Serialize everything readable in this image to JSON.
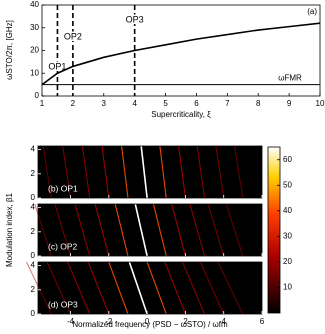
{
  "chart_data": [
    {
      "type": "line",
      "x": [
        1,
        1.5,
        2,
        3,
        4,
        5,
        6,
        7,
        8,
        9,
        10
      ],
      "series": [
        {
          "color": "#000000",
          "values": [
            5,
            10,
            13,
            17,
            20,
            22.5,
            25,
            27,
            29,
            30.5,
            32
          ]
        },
        {
          "name": "ωFMR",
          "color": "#000000",
          "values": [
            5,
            5,
            5,
            5,
            5,
            5,
            5,
            5,
            5,
            5,
            5
          ]
        }
      ],
      "xlim": [
        1,
        10
      ],
      "xticks": [
        1,
        2,
        3,
        4,
        5,
        6,
        7,
        8,
        9,
        10
      ],
      "ylim": [
        0,
        40
      ],
      "yticks": [
        0,
        10,
        20,
        30,
        40
      ],
      "xlabel": "Supercriticality, ξ",
      "ylabel": "ωSTO/2π, [GHz]",
      "panel_label": "(a)",
      "markers": [
        {
          "x": 1.5,
          "label": "OP1"
        },
        {
          "x": 2,
          "label": "OP2"
        },
        {
          "x": 4,
          "label": "OP3"
        }
      ]
    },
    {
      "type": "heatmap",
      "panels": [
        {
          "label": "(b) OP1"
        },
        {
          "label": "(c) OP2"
        },
        {
          "label": "(d) OP3"
        }
      ],
      "xlim": [
        -5.7,
        6
      ],
      "xticks": [
        -4,
        -2,
        0,
        2,
        4,
        6
      ],
      "ylim": [
        0,
        4.3
      ],
      "yticks": [
        0,
        2,
        4
      ],
      "xlabel": "Normalized frequency (PSD − ωSTO) / ωfm",
      "ylabel": "Modulation index, β1",
      "colorbar": {
        "clim": [
          0,
          65
        ],
        "ticks": [
          10,
          20,
          30,
          40,
          50,
          60
        ]
      }
    }
  ]
}
